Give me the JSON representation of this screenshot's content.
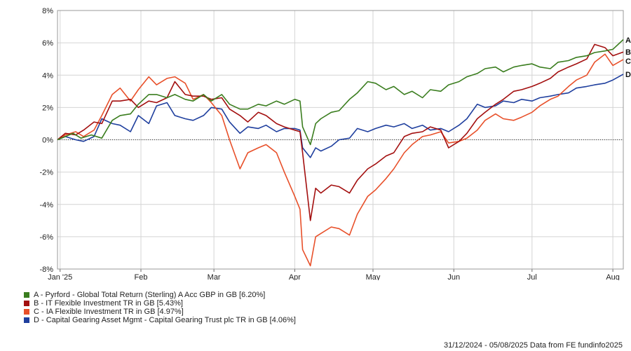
{
  "chart_data": {
    "type": "line",
    "x_ticks": [
      "Jan '25",
      "Feb",
      "Mar",
      "Apr",
      "May",
      "Jun",
      "Jul",
      "Aug"
    ],
    "x_tick_dates": [
      "2025-01-01",
      "2025-02-01",
      "2025-03-01",
      "2025-04-01",
      "2025-05-01",
      "2025-06-01",
      "2025-07-01",
      "2025-08-01"
    ],
    "xlim": [
      "2024-12-31",
      "2025-08-05"
    ],
    "y_ticks": [
      "8%",
      "6%",
      "4%",
      "2%",
      "0%",
      "-2%",
      "-4%",
      "-6%",
      "-8%"
    ],
    "ylim": [
      -8,
      8
    ],
    "grid": true,
    "zero_line": "dotted",
    "legend_placement": "bottom-left",
    "series": [
      {
        "key": "A",
        "name": "A - Pyrford - Global Total Return (Sterling) A Acc GBP in GB [6.20%]",
        "color": "#3a7d1e",
        "points": [
          [
            "2024-12-31",
            0.0
          ],
          [
            "2025-01-03",
            0.2
          ],
          [
            "2025-01-06",
            0.4
          ],
          [
            "2025-01-09",
            0.1
          ],
          [
            "2025-01-13",
            0.3
          ],
          [
            "2025-01-17",
            0.1
          ],
          [
            "2025-01-21",
            1.2
          ],
          [
            "2025-01-24",
            1.5
          ],
          [
            "2025-01-28",
            1.6
          ],
          [
            "2025-01-31",
            2.2
          ],
          [
            "2025-02-04",
            2.8
          ],
          [
            "2025-02-07",
            2.8
          ],
          [
            "2025-02-11",
            2.6
          ],
          [
            "2025-02-14",
            2.8
          ],
          [
            "2025-02-18",
            2.5
          ],
          [
            "2025-02-21",
            2.4
          ],
          [
            "2025-02-25",
            2.8
          ],
          [
            "2025-02-28",
            2.4
          ],
          [
            "2025-03-04",
            2.8
          ],
          [
            "2025-03-07",
            2.2
          ],
          [
            "2025-03-11",
            1.9
          ],
          [
            "2025-03-14",
            1.9
          ],
          [
            "2025-03-18",
            2.2
          ],
          [
            "2025-03-21",
            2.1
          ],
          [
            "2025-03-25",
            2.4
          ],
          [
            "2025-03-28",
            2.2
          ],
          [
            "2025-04-01",
            2.5
          ],
          [
            "2025-04-03",
            2.4
          ],
          [
            "2025-04-04",
            0.8
          ],
          [
            "2025-04-07",
            -0.3
          ],
          [
            "2025-04-09",
            1.0
          ],
          [
            "2025-04-11",
            1.3
          ],
          [
            "2025-04-15",
            1.7
          ],
          [
            "2025-04-18",
            1.8
          ],
          [
            "2025-04-22",
            2.5
          ],
          [
            "2025-04-25",
            2.9
          ],
          [
            "2025-04-29",
            3.6
          ],
          [
            "2025-05-02",
            3.5
          ],
          [
            "2025-05-06",
            3.1
          ],
          [
            "2025-05-09",
            3.3
          ],
          [
            "2025-05-13",
            2.8
          ],
          [
            "2025-05-16",
            3.0
          ],
          [
            "2025-05-20",
            2.6
          ],
          [
            "2025-05-23",
            3.1
          ],
          [
            "2025-05-27",
            3.0
          ],
          [
            "2025-05-30",
            3.4
          ],
          [
            "2025-06-03",
            3.6
          ],
          [
            "2025-06-06",
            3.9
          ],
          [
            "2025-06-10",
            4.1
          ],
          [
            "2025-06-13",
            4.4
          ],
          [
            "2025-06-17",
            4.5
          ],
          [
            "2025-06-20",
            4.2
          ],
          [
            "2025-06-24",
            4.5
          ],
          [
            "2025-06-27",
            4.6
          ],
          [
            "2025-07-01",
            4.7
          ],
          [
            "2025-07-04",
            4.5
          ],
          [
            "2025-07-08",
            4.4
          ],
          [
            "2025-07-11",
            4.8
          ],
          [
            "2025-07-15",
            4.9
          ],
          [
            "2025-07-18",
            5.1
          ],
          [
            "2025-07-22",
            5.2
          ],
          [
            "2025-07-25",
            5.4
          ],
          [
            "2025-07-29",
            5.5
          ],
          [
            "2025-08-01",
            5.6
          ],
          [
            "2025-08-05",
            6.2
          ]
        ]
      },
      {
        "key": "B",
        "name": "B - IT Flexible Investment TR in GB [5.43%]",
        "color": "#a30f0f",
        "points": [
          [
            "2024-12-31",
            0.0
          ],
          [
            "2025-01-03",
            0.4
          ],
          [
            "2025-01-07",
            0.3
          ],
          [
            "2025-01-10",
            0.6
          ],
          [
            "2025-01-14",
            1.1
          ],
          [
            "2025-01-17",
            1.0
          ],
          [
            "2025-01-21",
            2.4
          ],
          [
            "2025-01-24",
            2.4
          ],
          [
            "2025-01-28",
            2.5
          ],
          [
            "2025-01-31",
            2.0
          ],
          [
            "2025-02-04",
            2.4
          ],
          [
            "2025-02-07",
            2.3
          ],
          [
            "2025-02-11",
            2.6
          ],
          [
            "2025-02-14",
            3.6
          ],
          [
            "2025-02-18",
            2.8
          ],
          [
            "2025-02-21",
            2.7
          ],
          [
            "2025-02-25",
            2.7
          ],
          [
            "2025-02-28",
            2.5
          ],
          [
            "2025-03-04",
            2.6
          ],
          [
            "2025-03-07",
            1.9
          ],
          [
            "2025-03-11",
            1.5
          ],
          [
            "2025-03-14",
            1.1
          ],
          [
            "2025-03-18",
            1.7
          ],
          [
            "2025-03-21",
            1.5
          ],
          [
            "2025-03-25",
            1.0
          ],
          [
            "2025-03-28",
            0.8
          ],
          [
            "2025-04-01",
            0.6
          ],
          [
            "2025-04-03",
            0.5
          ],
          [
            "2025-04-04",
            -0.8
          ],
          [
            "2025-04-07",
            -5.0
          ],
          [
            "2025-04-09",
            -3.0
          ],
          [
            "2025-04-11",
            -3.3
          ],
          [
            "2025-04-15",
            -2.8
          ],
          [
            "2025-04-18",
            -2.9
          ],
          [
            "2025-04-22",
            -3.3
          ],
          [
            "2025-04-25",
            -2.5
          ],
          [
            "2025-04-29",
            -1.8
          ],
          [
            "2025-05-02",
            -1.5
          ],
          [
            "2025-05-06",
            -1.0
          ],
          [
            "2025-05-09",
            -0.8
          ],
          [
            "2025-05-13",
            0.2
          ],
          [
            "2025-05-16",
            0.4
          ],
          [
            "2025-05-20",
            0.5
          ],
          [
            "2025-05-23",
            0.8
          ],
          [
            "2025-05-27",
            0.6
          ],
          [
            "2025-05-30",
            -0.5
          ],
          [
            "2025-06-03",
            -0.1
          ],
          [
            "2025-06-06",
            0.4
          ],
          [
            "2025-06-10",
            1.3
          ],
          [
            "2025-06-13",
            1.7
          ],
          [
            "2025-06-17",
            2.2
          ],
          [
            "2025-06-20",
            2.5
          ],
          [
            "2025-06-24",
            3.0
          ],
          [
            "2025-06-27",
            3.1
          ],
          [
            "2025-07-01",
            3.3
          ],
          [
            "2025-07-04",
            3.5
          ],
          [
            "2025-07-08",
            3.8
          ],
          [
            "2025-07-11",
            4.2
          ],
          [
            "2025-07-15",
            4.5
          ],
          [
            "2025-07-18",
            4.7
          ],
          [
            "2025-07-22",
            5.0
          ],
          [
            "2025-07-25",
            5.9
          ],
          [
            "2025-07-29",
            5.7
          ],
          [
            "2025-08-01",
            5.2
          ],
          [
            "2025-08-05",
            5.43
          ]
        ]
      },
      {
        "key": "C",
        "name": "C - IA Flexible Investment TR in GB [4.97%]",
        "color": "#e8502a",
        "points": [
          [
            "2024-12-31",
            0.0
          ],
          [
            "2025-01-03",
            0.3
          ],
          [
            "2025-01-07",
            0.5
          ],
          [
            "2025-01-10",
            0.2
          ],
          [
            "2025-01-14",
            0.6
          ],
          [
            "2025-01-17",
            1.5
          ],
          [
            "2025-01-21",
            2.8
          ],
          [
            "2025-01-24",
            3.2
          ],
          [
            "2025-01-28",
            2.4
          ],
          [
            "2025-01-31",
            3.1
          ],
          [
            "2025-02-04",
            3.9
          ],
          [
            "2025-02-07",
            3.4
          ],
          [
            "2025-02-11",
            3.8
          ],
          [
            "2025-02-14",
            3.9
          ],
          [
            "2025-02-18",
            3.5
          ],
          [
            "2025-02-21",
            2.5
          ],
          [
            "2025-02-25",
            2.8
          ],
          [
            "2025-02-28",
            2.3
          ],
          [
            "2025-03-04",
            1.5
          ],
          [
            "2025-03-07",
            0.0
          ],
          [
            "2025-03-11",
            -1.8
          ],
          [
            "2025-03-14",
            -0.8
          ],
          [
            "2025-03-18",
            -0.5
          ],
          [
            "2025-03-21",
            -0.3
          ],
          [
            "2025-03-25",
            -0.8
          ],
          [
            "2025-03-28",
            -2.0
          ],
          [
            "2025-04-01",
            -3.5
          ],
          [
            "2025-04-03",
            -4.3
          ],
          [
            "2025-04-04",
            -6.8
          ],
          [
            "2025-04-07",
            -7.8
          ],
          [
            "2025-04-09",
            -6.0
          ],
          [
            "2025-04-11",
            -5.8
          ],
          [
            "2025-04-15",
            -5.4
          ],
          [
            "2025-04-18",
            -5.5
          ],
          [
            "2025-04-22",
            -5.9
          ],
          [
            "2025-04-25",
            -4.6
          ],
          [
            "2025-04-29",
            -3.5
          ],
          [
            "2025-05-02",
            -3.1
          ],
          [
            "2025-05-06",
            -2.4
          ],
          [
            "2025-05-09",
            -1.8
          ],
          [
            "2025-05-13",
            -0.8
          ],
          [
            "2025-05-16",
            -0.3
          ],
          [
            "2025-05-20",
            0.2
          ],
          [
            "2025-05-23",
            0.3
          ],
          [
            "2025-05-27",
            0.5
          ],
          [
            "2025-05-30",
            -0.2
          ],
          [
            "2025-06-03",
            -0.1
          ],
          [
            "2025-06-06",
            0.1
          ],
          [
            "2025-06-10",
            0.6
          ],
          [
            "2025-06-13",
            1.2
          ],
          [
            "2025-06-17",
            1.6
          ],
          [
            "2025-06-20",
            1.3
          ],
          [
            "2025-06-24",
            1.2
          ],
          [
            "2025-06-27",
            1.4
          ],
          [
            "2025-07-01",
            1.7
          ],
          [
            "2025-07-04",
            2.1
          ],
          [
            "2025-07-08",
            2.5
          ],
          [
            "2025-07-11",
            2.7
          ],
          [
            "2025-07-15",
            3.3
          ],
          [
            "2025-07-18",
            3.7
          ],
          [
            "2025-07-22",
            4.0
          ],
          [
            "2025-07-25",
            4.8
          ],
          [
            "2025-07-29",
            5.3
          ],
          [
            "2025-08-01",
            4.6
          ],
          [
            "2025-08-05",
            4.97
          ]
        ]
      },
      {
        "key": "D",
        "name": "D - Capital Gearing Asset Mgmt - Capital Gearing Trust plc TR in GB [4.06%]",
        "color": "#1f3f9e",
        "points": [
          [
            "2024-12-31",
            0.0
          ],
          [
            "2025-01-03",
            0.2
          ],
          [
            "2025-01-07",
            0.0
          ],
          [
            "2025-01-10",
            -0.1
          ],
          [
            "2025-01-14",
            0.2
          ],
          [
            "2025-01-17",
            1.3
          ],
          [
            "2025-01-21",
            1.0
          ],
          [
            "2025-01-24",
            0.9
          ],
          [
            "2025-01-28",
            0.5
          ],
          [
            "2025-01-31",
            1.5
          ],
          [
            "2025-02-04",
            1.0
          ],
          [
            "2025-02-07",
            2.1
          ],
          [
            "2025-02-11",
            2.3
          ],
          [
            "2025-02-14",
            1.5
          ],
          [
            "2025-02-18",
            1.3
          ],
          [
            "2025-02-21",
            1.2
          ],
          [
            "2025-02-25",
            1.5
          ],
          [
            "2025-02-28",
            2.0
          ],
          [
            "2025-03-04",
            1.9
          ],
          [
            "2025-03-07",
            1.1
          ],
          [
            "2025-03-11",
            0.4
          ],
          [
            "2025-03-14",
            0.8
          ],
          [
            "2025-03-18",
            0.7
          ],
          [
            "2025-03-21",
            0.9
          ],
          [
            "2025-03-25",
            0.5
          ],
          [
            "2025-03-28",
            0.7
          ],
          [
            "2025-04-01",
            0.7
          ],
          [
            "2025-04-03",
            0.6
          ],
          [
            "2025-04-04",
            -0.5
          ],
          [
            "2025-04-07",
            -1.1
          ],
          [
            "2025-04-09",
            -0.5
          ],
          [
            "2025-04-11",
            -0.7
          ],
          [
            "2025-04-15",
            -0.4
          ],
          [
            "2025-04-18",
            0.0
          ],
          [
            "2025-04-22",
            0.1
          ],
          [
            "2025-04-25",
            0.7
          ],
          [
            "2025-04-29",
            0.5
          ],
          [
            "2025-05-02",
            0.7
          ],
          [
            "2025-05-06",
            0.9
          ],
          [
            "2025-05-09",
            0.8
          ],
          [
            "2025-05-13",
            1.0
          ],
          [
            "2025-05-16",
            0.7
          ],
          [
            "2025-05-20",
            0.9
          ],
          [
            "2025-05-23",
            0.6
          ],
          [
            "2025-05-27",
            0.7
          ],
          [
            "2025-05-30",
            0.5
          ],
          [
            "2025-06-03",
            0.9
          ],
          [
            "2025-06-06",
            1.3
          ],
          [
            "2025-06-10",
            2.2
          ],
          [
            "2025-06-13",
            2.0
          ],
          [
            "2025-06-17",
            2.1
          ],
          [
            "2025-06-20",
            2.4
          ],
          [
            "2025-06-24",
            2.3
          ],
          [
            "2025-06-27",
            2.5
          ],
          [
            "2025-07-01",
            2.4
          ],
          [
            "2025-07-04",
            2.6
          ],
          [
            "2025-07-08",
            2.7
          ],
          [
            "2025-07-11",
            2.8
          ],
          [
            "2025-07-15",
            2.9
          ],
          [
            "2025-07-18",
            3.2
          ],
          [
            "2025-07-22",
            3.3
          ],
          [
            "2025-07-25",
            3.4
          ],
          [
            "2025-07-29",
            3.5
          ],
          [
            "2025-08-01",
            3.7
          ],
          [
            "2025-08-05",
            4.06
          ]
        ]
      }
    ],
    "footer": "31/12/2024 - 05/08/2025 Data from FE fundinfo2025"
  }
}
